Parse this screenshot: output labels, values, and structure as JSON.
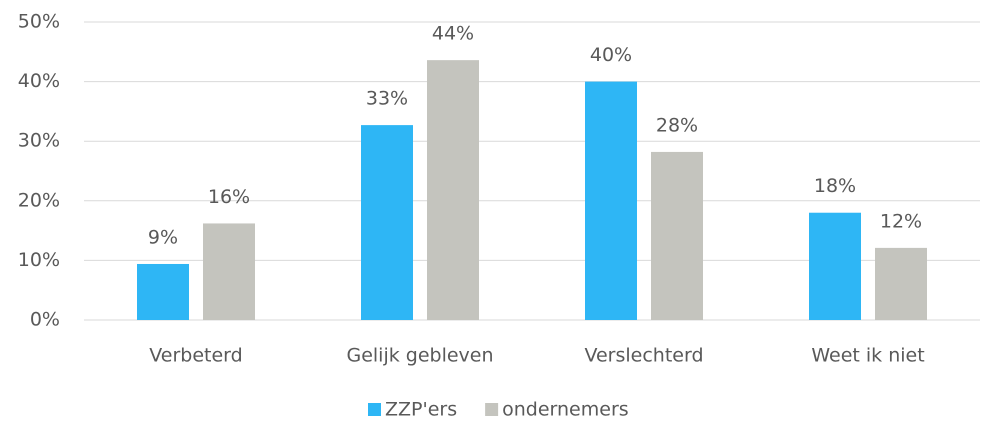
{
  "chart_data": {
    "type": "bar",
    "categories": [
      "Verbeterd",
      "Gelijk gebleven",
      "Verslechterd",
      "Weet ik niet"
    ],
    "series": [
      {
        "name": "ZZP'ers",
        "color": "#2eb6f5",
        "values": [
          9.4,
          32.7,
          40,
          18
        ],
        "value_labels": [
          "9%",
          "33%",
          "40%",
          "18%"
        ]
      },
      {
        "name": "ondernemers",
        "color": "#c4c4be",
        "values": [
          16.2,
          43.6,
          28.2,
          12.1
        ],
        "value_labels": [
          "16%",
          "44%",
          "28%",
          "12%"
        ]
      }
    ],
    "ylim": [
      0,
      50
    ],
    "yticks": [
      {
        "value": 0,
        "label": "0%"
      },
      {
        "value": 10,
        "label": "10%"
      },
      {
        "value": 20,
        "label": "20%"
      },
      {
        "value": 30,
        "label": "30%"
      },
      {
        "value": 40,
        "label": "40%"
      },
      {
        "value": 50,
        "label": "50%"
      }
    ],
    "grid": true,
    "legend": "bottom"
  }
}
